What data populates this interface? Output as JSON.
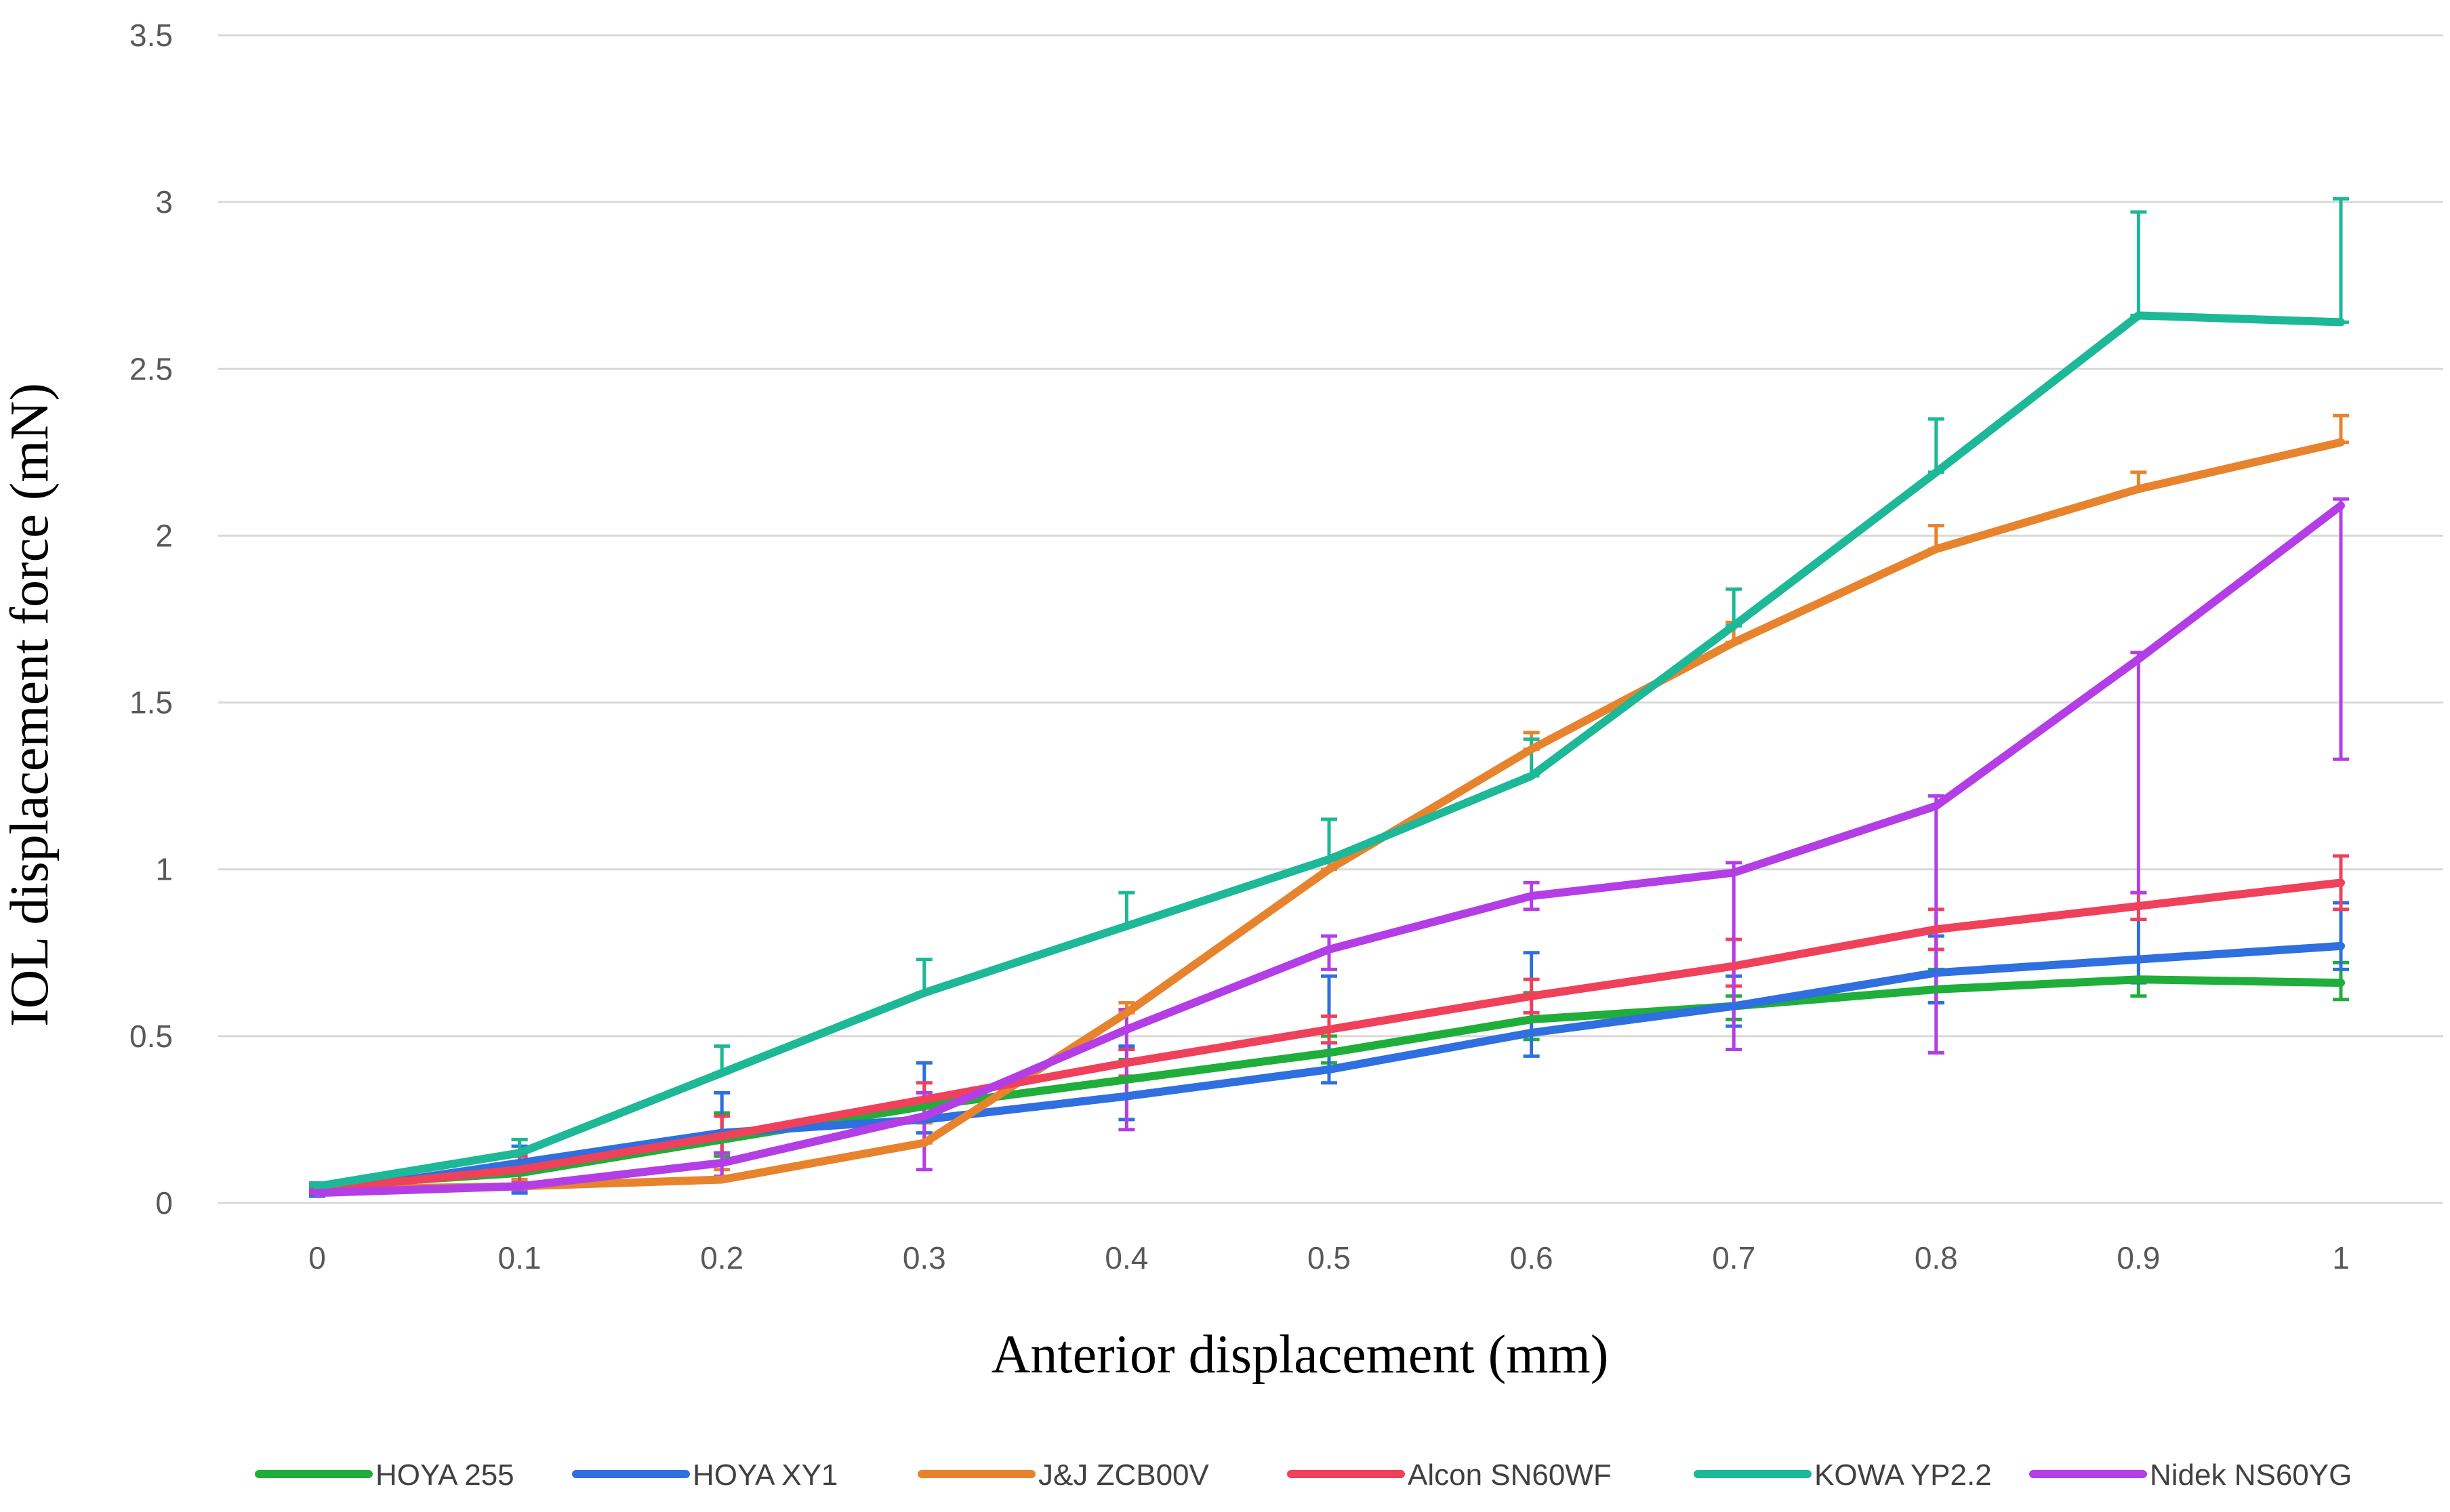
{
  "chart_data": {
    "type": "line",
    "title": "",
    "xlabel": "Anterior displacement (mm)",
    "ylabel": "IOL displacement force  (mN)",
    "ylim": [
      0,
      3.5
    ],
    "yticks": [
      "0",
      "0.5",
      "1",
      "1.5",
      "2",
      "2.5",
      "3",
      "3.5"
    ],
    "categories": [
      "0",
      "0.1",
      "0.2",
      "0.3",
      "0.4",
      "0.5",
      "0.6",
      "0.7",
      "0.8",
      "0.9",
      "1"
    ],
    "legend_position": "bottom",
    "grid": true,
    "series": [
      {
        "name": "HOYA 255",
        "color": "#1fae3a",
        "values": [
          0.05,
          0.09,
          0.19,
          0.29,
          0.37,
          0.45,
          0.55,
          0.59,
          0.64,
          0.67,
          0.66
        ],
        "error_up": [
          0.05,
          0.19,
          0.27,
          0.33,
          0.43,
          0.5,
          0.63,
          0.62,
          0.7,
          0.73,
          0.72
        ],
        "error_down": [
          0.04,
          0.06,
          0.14,
          0.25,
          0.32,
          0.42,
          0.49,
          0.55,
          0.6,
          0.62,
          0.61
        ]
      },
      {
        "name": "HOYA XY1",
        "color": "#2f6fdf",
        "values": [
          0.03,
          0.12,
          0.21,
          0.25,
          0.32,
          0.4,
          0.51,
          0.59,
          0.69,
          0.73,
          0.77
        ],
        "error_up": [
          0.04,
          0.17,
          0.33,
          0.42,
          0.47,
          0.68,
          0.75,
          0.68,
          0.8,
          0.85,
          0.9
        ],
        "error_down": [
          0.02,
          0.03,
          0.12,
          0.21,
          0.25,
          0.36,
          0.44,
          0.53,
          0.6,
          0.66,
          0.7
        ]
      },
      {
        "name": "J&J ZCB00V",
        "color": "#e8832d",
        "values": [
          0.04,
          0.05,
          0.07,
          0.18,
          0.57,
          1.0,
          1.36,
          1.68,
          1.96,
          2.14,
          2.28
        ],
        "error_up": [
          0.05,
          0.07,
          0.1,
          0.24,
          0.6,
          1.03,
          1.41,
          1.74,
          2.03,
          2.19,
          2.36
        ],
        "error_down": [
          0.04,
          0.05,
          0.07,
          0.18,
          0.57,
          1.0,
          1.36,
          1.68,
          1.96,
          2.14,
          2.28
        ]
      },
      {
        "name": "Alcon SN60WF",
        "color": "#f0415a",
        "values": [
          0.04,
          0.1,
          0.2,
          0.31,
          0.42,
          0.52,
          0.62,
          0.71,
          0.82,
          0.89,
          0.96
        ],
        "error_up": [
          0.05,
          0.14,
          0.26,
          0.36,
          0.46,
          0.56,
          0.67,
          0.79,
          0.88,
          0.93,
          1.04
        ],
        "error_down": [
          0.03,
          0.06,
          0.15,
          0.26,
          0.38,
          0.48,
          0.57,
          0.65,
          0.76,
          0.85,
          0.88
        ]
      },
      {
        "name": "KOWA YP2.2",
        "color": "#1cb897",
        "values": [
          0.05,
          0.15,
          0.39,
          0.63,
          0.83,
          1.03,
          1.28,
          1.73,
          2.19,
          2.66,
          2.64
        ],
        "error_up": [
          0.06,
          0.19,
          0.47,
          0.73,
          0.93,
          1.15,
          1.39,
          1.84,
          2.35,
          2.97,
          3.01
        ],
        "error_down": [
          0.05,
          0.15,
          0.39,
          0.63,
          0.83,
          1.03,
          1.28,
          1.73,
          2.19,
          2.66,
          2.64
        ]
      },
      {
        "name": "Nidek NS60YG",
        "color": "#b43ee6",
        "values": [
          0.03,
          0.05,
          0.12,
          0.26,
          0.52,
          0.76,
          0.92,
          0.99,
          1.19,
          1.63,
          2.09
        ],
        "error_up": [
          0.04,
          0.06,
          0.15,
          0.33,
          0.58,
          0.8,
          0.96,
          1.02,
          1.22,
          1.65,
          2.11
        ],
        "error_down": [
          0.03,
          0.04,
          0.08,
          0.1,
          0.22,
          0.7,
          0.88,
          0.46,
          0.45,
          0.93,
          1.33
        ]
      }
    ]
  }
}
